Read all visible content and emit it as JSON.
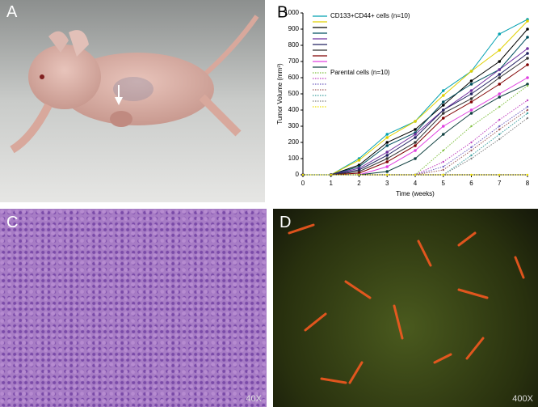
{
  "panels": {
    "a": {
      "label": "A"
    },
    "b": {
      "label": "B"
    },
    "c": {
      "label": "C",
      "magnification": "40X"
    },
    "d": {
      "label": "D",
      "magnification": "400X"
    }
  },
  "chart_data": {
    "type": "line",
    "xlabel": "Time (weeks)",
    "ylabel": "Tumor Volume (mm³)",
    "x": [
      0,
      1,
      2,
      3,
      4,
      5,
      6,
      7,
      8
    ],
    "xlim": [
      0,
      8
    ],
    "xticks": [
      0,
      1,
      2,
      3,
      4,
      5,
      6,
      7,
      8
    ],
    "ylim": [
      0,
      1000
    ],
    "yticks": [
      0,
      100,
      200,
      300,
      400,
      500,
      600,
      700,
      800,
      900,
      1000
    ],
    "groups": [
      {
        "name": "CD133+CD44+ cells (n=10)",
        "style": "solid",
        "series": [
          {
            "color": "#00a0b0",
            "values": [
              0,
              0,
              100,
              250,
              330,
              520,
              640,
              870,
              960
            ]
          },
          {
            "color": "#e0d000",
            "values": [
              0,
              0,
              90,
              230,
              330,
              490,
              640,
              770,
              950
            ]
          },
          {
            "color": "#000000",
            "values": [
              0,
              0,
              60,
              200,
              280,
              430,
              580,
              700,
              900
            ]
          },
          {
            "color": "#005060",
            "values": [
              0,
              0,
              50,
              180,
              260,
              450,
              560,
              650,
              850
            ]
          },
          {
            "color": "#7030a0",
            "values": [
              0,
              0,
              40,
              140,
              250,
              400,
              520,
              650,
              780
            ]
          },
          {
            "color": "#202060",
            "values": [
              0,
              0,
              30,
              120,
              230,
              400,
              500,
              620,
              750
            ]
          },
          {
            "color": "#333333",
            "values": [
              0,
              0,
              20,
              100,
              200,
              380,
              470,
              600,
              720
            ]
          },
          {
            "color": "#800000",
            "values": [
              0,
              0,
              10,
              80,
              180,
              350,
              450,
              560,
              680
            ]
          },
          {
            "color": "#e040e0",
            "values": [
              0,
              0,
              0,
              50,
              150,
              300,
              400,
              500,
              600
            ]
          },
          {
            "color": "#104040",
            "values": [
              0,
              0,
              0,
              20,
              100,
              250,
              380,
              480,
              560
            ]
          }
        ]
      },
      {
        "name": "Parental cells (n=10)",
        "style": "dotted",
        "series": [
          {
            "color": "#80c040",
            "values": [
              0,
              0,
              0,
              0,
              0,
              150,
              300,
              420,
              550
            ]
          },
          {
            "color": "#c040c0",
            "values": [
              0,
              0,
              0,
              0,
              0,
              80,
              200,
              340,
              460
            ]
          },
          {
            "color": "#7060c0",
            "values": [
              0,
              0,
              0,
              0,
              0,
              50,
              170,
              300,
              420
            ]
          },
          {
            "color": "#a06060",
            "values": [
              0,
              0,
              0,
              0,
              0,
              30,
              150,
              280,
              400
            ]
          },
          {
            "color": "#40a0a0",
            "values": [
              0,
              0,
              0,
              0,
              0,
              0,
              120,
              250,
              380
            ]
          },
          {
            "color": "#808080",
            "values": [
              0,
              0,
              0,
              0,
              0,
              0,
              100,
              220,
              350
            ]
          },
          {
            "color": "#f0e000",
            "values": [
              0,
              0,
              0,
              0,
              0,
              0,
              0,
              0,
              0
            ]
          }
        ]
      }
    ]
  }
}
